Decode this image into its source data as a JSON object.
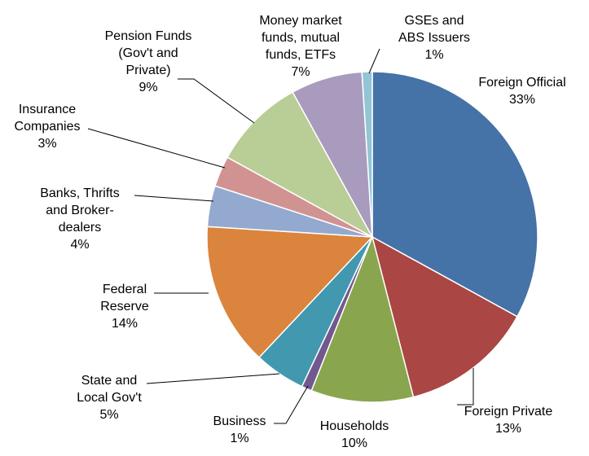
{
  "chart_data": {
    "type": "pie",
    "title": "",
    "slices": [
      {
        "label": "Foreign Official",
        "pct_text": "33%",
        "value": 33,
        "color": "#4572A7"
      },
      {
        "label": "Foreign Private",
        "pct_text": "13%",
        "value": 13,
        "color": "#AA4643"
      },
      {
        "label": "Households",
        "pct_text": "10%",
        "value": 10,
        "color": "#89A54E"
      },
      {
        "label": "Business",
        "pct_text": "1%",
        "value": 1,
        "color": "#71588F"
      },
      {
        "label": "State and Local Gov't",
        "pct_text": "5%",
        "value": 5,
        "color": "#4198AF"
      },
      {
        "label": "Federal Reserve",
        "pct_text": "14%",
        "value": 14,
        "color": "#DB843D"
      },
      {
        "label": "Banks, Thrifts and Broker-dealers",
        "pct_text": "4%",
        "value": 4,
        "color": "#93A9CF"
      },
      {
        "label": "Insurance Companies",
        "pct_text": "3%",
        "value": 3,
        "color": "#D19392"
      },
      {
        "label": "Pension Funds (Gov't and Private)",
        "pct_text": "9%",
        "value": 9,
        "color": "#B9CD96"
      },
      {
        "label": "Money market funds, mutual funds, ETFs",
        "pct_text": "7%",
        "value": 7,
        "color": "#A99BBD"
      },
      {
        "label": "GSEs and ABS Issuers",
        "pct_text": "1%",
        "value": 1,
        "color": "#92C5D6"
      }
    ]
  }
}
